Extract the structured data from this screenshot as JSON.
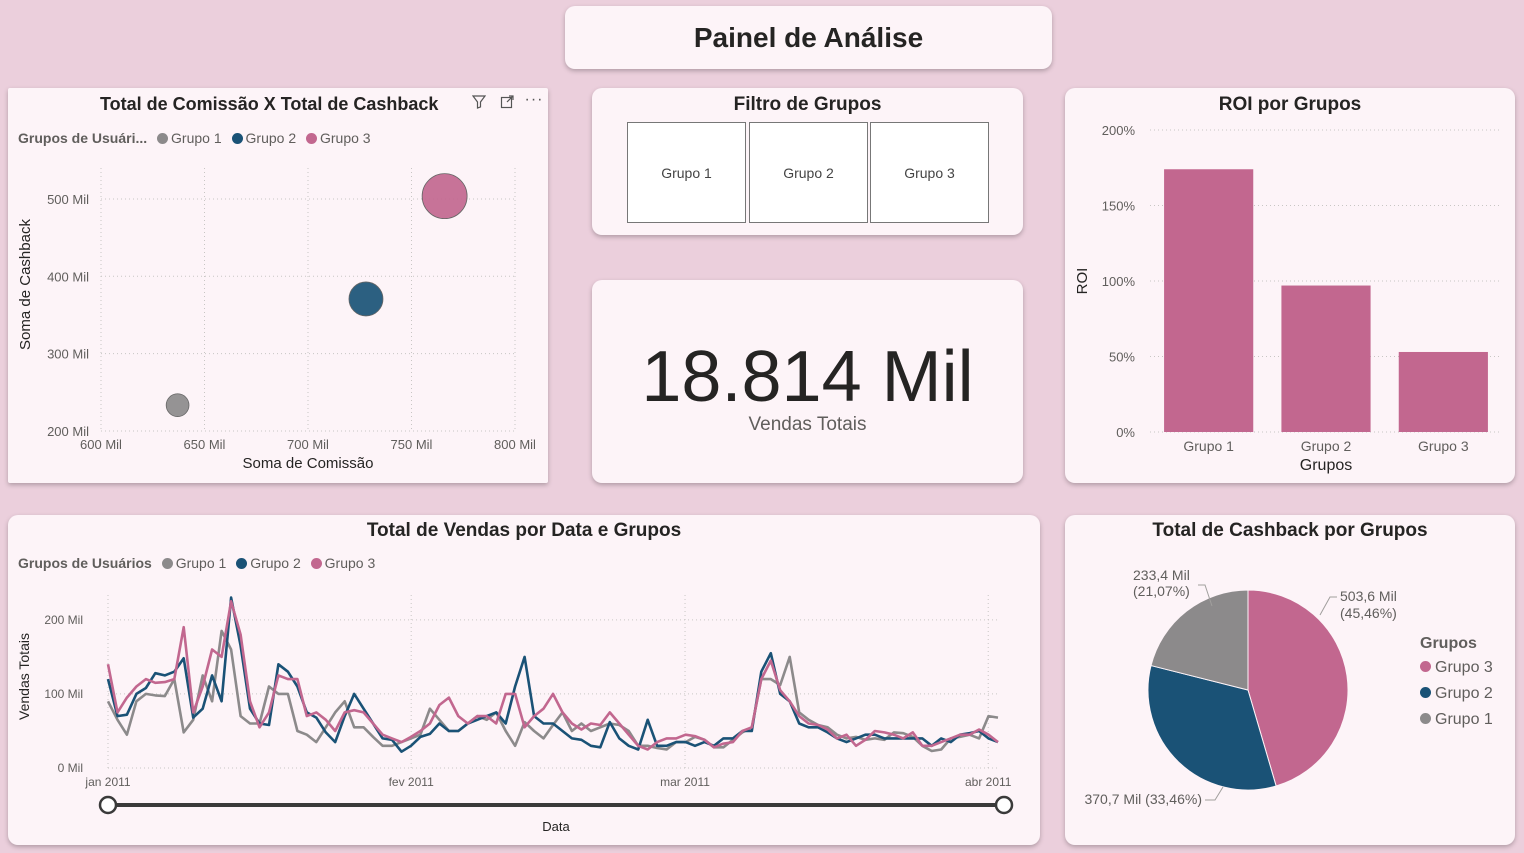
{
  "page": {
    "title": "Painel de Análise"
  },
  "scatter": {
    "title": "Total de Comissão X Total de Cashback",
    "legend_title": "Grupos de Usuári...",
    "chart_data": {
      "type": "scatter",
      "title": "Total de Comissão X Total de Cashback",
      "xlabel": "Soma de Comissão",
      "ylabel": "Soma de Cashback",
      "xlim": [
        600,
        800
      ],
      "ylim": [
        200,
        540
      ],
      "x_ticks": [
        600,
        650,
        700,
        750,
        800
      ],
      "x_tick_labels": [
        "600 Mil",
        "650 Mil",
        "700 Mil",
        "750 Mil",
        "800 Mil"
      ],
      "y_ticks": [
        200,
        300,
        400,
        500
      ],
      "y_tick_labels": [
        "200 Mil",
        "300 Mil",
        "400 Mil",
        "500 Mil"
      ],
      "series": [
        {
          "name": "Grupo 1",
          "color": "#8c8a8b",
          "x": 637,
          "y": 233.4
        },
        {
          "name": "Grupo 2",
          "color": "#1a5276",
          "x": 728,
          "y": 370.7
        },
        {
          "name": "Grupo 3",
          "color": "#c2678f",
          "x": 766,
          "y": 503.6
        }
      ]
    }
  },
  "filter": {
    "title": "Filtro de Grupos",
    "options": [
      "Grupo 1",
      "Grupo 2",
      "Grupo 3"
    ]
  },
  "kpi": {
    "value": "18.814 Mil",
    "label": "Vendas Totais"
  },
  "roi": {
    "title": "ROI por Grupos",
    "chart_data": {
      "type": "bar",
      "title": "ROI por Grupos",
      "xlabel": "Grupos",
      "ylabel": "ROI",
      "categories": [
        "Grupo 1",
        "Grupo 2",
        "Grupo 3"
      ],
      "values": [
        174,
        97,
        53
      ],
      "ylim": [
        0,
        200
      ],
      "y_ticks": [
        0,
        50,
        100,
        150,
        200
      ],
      "y_tick_labels": [
        "0%",
        "50%",
        "100%",
        "150%",
        "200%"
      ],
      "color": "#c2678f"
    }
  },
  "sales": {
    "title": "Total de Vendas por Data e Grupos",
    "legend_title": "Grupos de Usuários",
    "chart_data": {
      "type": "line",
      "title": "Total de Vendas por Data e Grupos",
      "xlabel": "Data",
      "ylabel": "Vendas Totais",
      "ylim": [
        0,
        220
      ],
      "y_ticks": [
        0,
        100,
        200
      ],
      "y_tick_labels": [
        "0 Mil",
        "100 Mil",
        "200 Mil"
      ],
      "x_tick_labels": [
        "jan 2011",
        "fev 2011",
        "mar 2011",
        "abr 2011"
      ],
      "x_tick_days": [
        0,
        31,
        59,
        90
      ],
      "x_range_days": [
        0,
        91
      ],
      "series": [
        {
          "name": "Grupo 1",
          "color": "#8c8a8b",
          "values": [
            90,
            65,
            45,
            90,
            100,
            98,
            97,
            120,
            48,
            65,
            125,
            90,
            185,
            160,
            70,
            60,
            60,
            110,
            100,
            100,
            50,
            45,
            35,
            55,
            75,
            90,
            55,
            55,
            42,
            30,
            30,
            35,
            40,
            45,
            80,
            65,
            50,
            50,
            60,
            70,
            65,
            75,
            50,
            30,
            62,
            50,
            40,
            58,
            75,
            50,
            60,
            50,
            55,
            60,
            58,
            50,
            30,
            30,
            27,
            25,
            35,
            35,
            42,
            38,
            28,
            28,
            38,
            48,
            55,
            120,
            120,
            112,
            150,
            75,
            65,
            58,
            55,
            45,
            40,
            42,
            38,
            40,
            38,
            48,
            47,
            42,
            30,
            23,
            25,
            40,
            42,
            45,
            40,
            70,
            68
          ]
        },
        {
          "name": "Grupo 2",
          "color": "#1a5276",
          "values": [
            120,
            70,
            72,
            100,
            108,
            128,
            125,
            130,
            148,
            68,
            80,
            125,
            90,
            230,
            165,
            80,
            60,
            58,
            140,
            130,
            110,
            75,
            68,
            48,
            35,
            70,
            100,
            80,
            60,
            40,
            38,
            22,
            30,
            42,
            46,
            60,
            50,
            50,
            60,
            65,
            70,
            75,
            60,
            110,
            150,
            70,
            60,
            60,
            50,
            40,
            38,
            30,
            28,
            62,
            40,
            30,
            25,
            65,
            30,
            30,
            35,
            35,
            30,
            35,
            30,
            40,
            40,
            50,
            50,
            130,
            155,
            100,
            90,
            60,
            55,
            55,
            48,
            40,
            35,
            40,
            45,
            45,
            40,
            40,
            40,
            40,
            40,
            30,
            40,
            35,
            45,
            47,
            50,
            40,
            35
          ]
        },
        {
          "name": "Grupo 3",
          "color": "#c2678f",
          "values": [
            140,
            75,
            95,
            110,
            120,
            115,
            116,
            120,
            190,
            75,
            110,
            160,
            150,
            225,
            180,
            90,
            55,
            75,
            125,
            120,
            120,
            70,
            75,
            65,
            50,
            75,
            78,
            75,
            60,
            45,
            40,
            35,
            42,
            50,
            60,
            85,
            95,
            70,
            60,
            70,
            70,
            60,
            100,
            100,
            55,
            70,
            80,
            100,
            75,
            60,
            52,
            60,
            58,
            75,
            60,
            45,
            30,
            25,
            35,
            40,
            40,
            45,
            43,
            38,
            28,
            33,
            35,
            50,
            55,
            120,
            145,
            105,
            90,
            70,
            60,
            58,
            52,
            40,
            45,
            30,
            38,
            50,
            48,
            45,
            40,
            48,
            30,
            30,
            35,
            40,
            45,
            45,
            52,
            45,
            35
          ]
        }
      ]
    }
  },
  "pie": {
    "title": "Total de Cashback por Grupos",
    "legend_title": "Grupos",
    "chart_data": {
      "type": "pie",
      "title": "Total de Cashback por Grupos",
      "slices": [
        {
          "name": "Grupo 3",
          "value": 503.6,
          "label": "503,6 Mil",
          "pct": "(45,46%)",
          "color": "#c2678f"
        },
        {
          "name": "Grupo 2",
          "value": 370.7,
          "label": "370,7 Mil (33,46%)",
          "pct": "",
          "color": "#1a5276"
        },
        {
          "name": "Grupo 1",
          "value": 233.4,
          "label": "233,4 Mil",
          "pct": "(21,07%)",
          "color": "#8c8a8b"
        }
      ],
      "legend": [
        "Grupo 3",
        "Grupo 2",
        "Grupo 1"
      ]
    }
  }
}
